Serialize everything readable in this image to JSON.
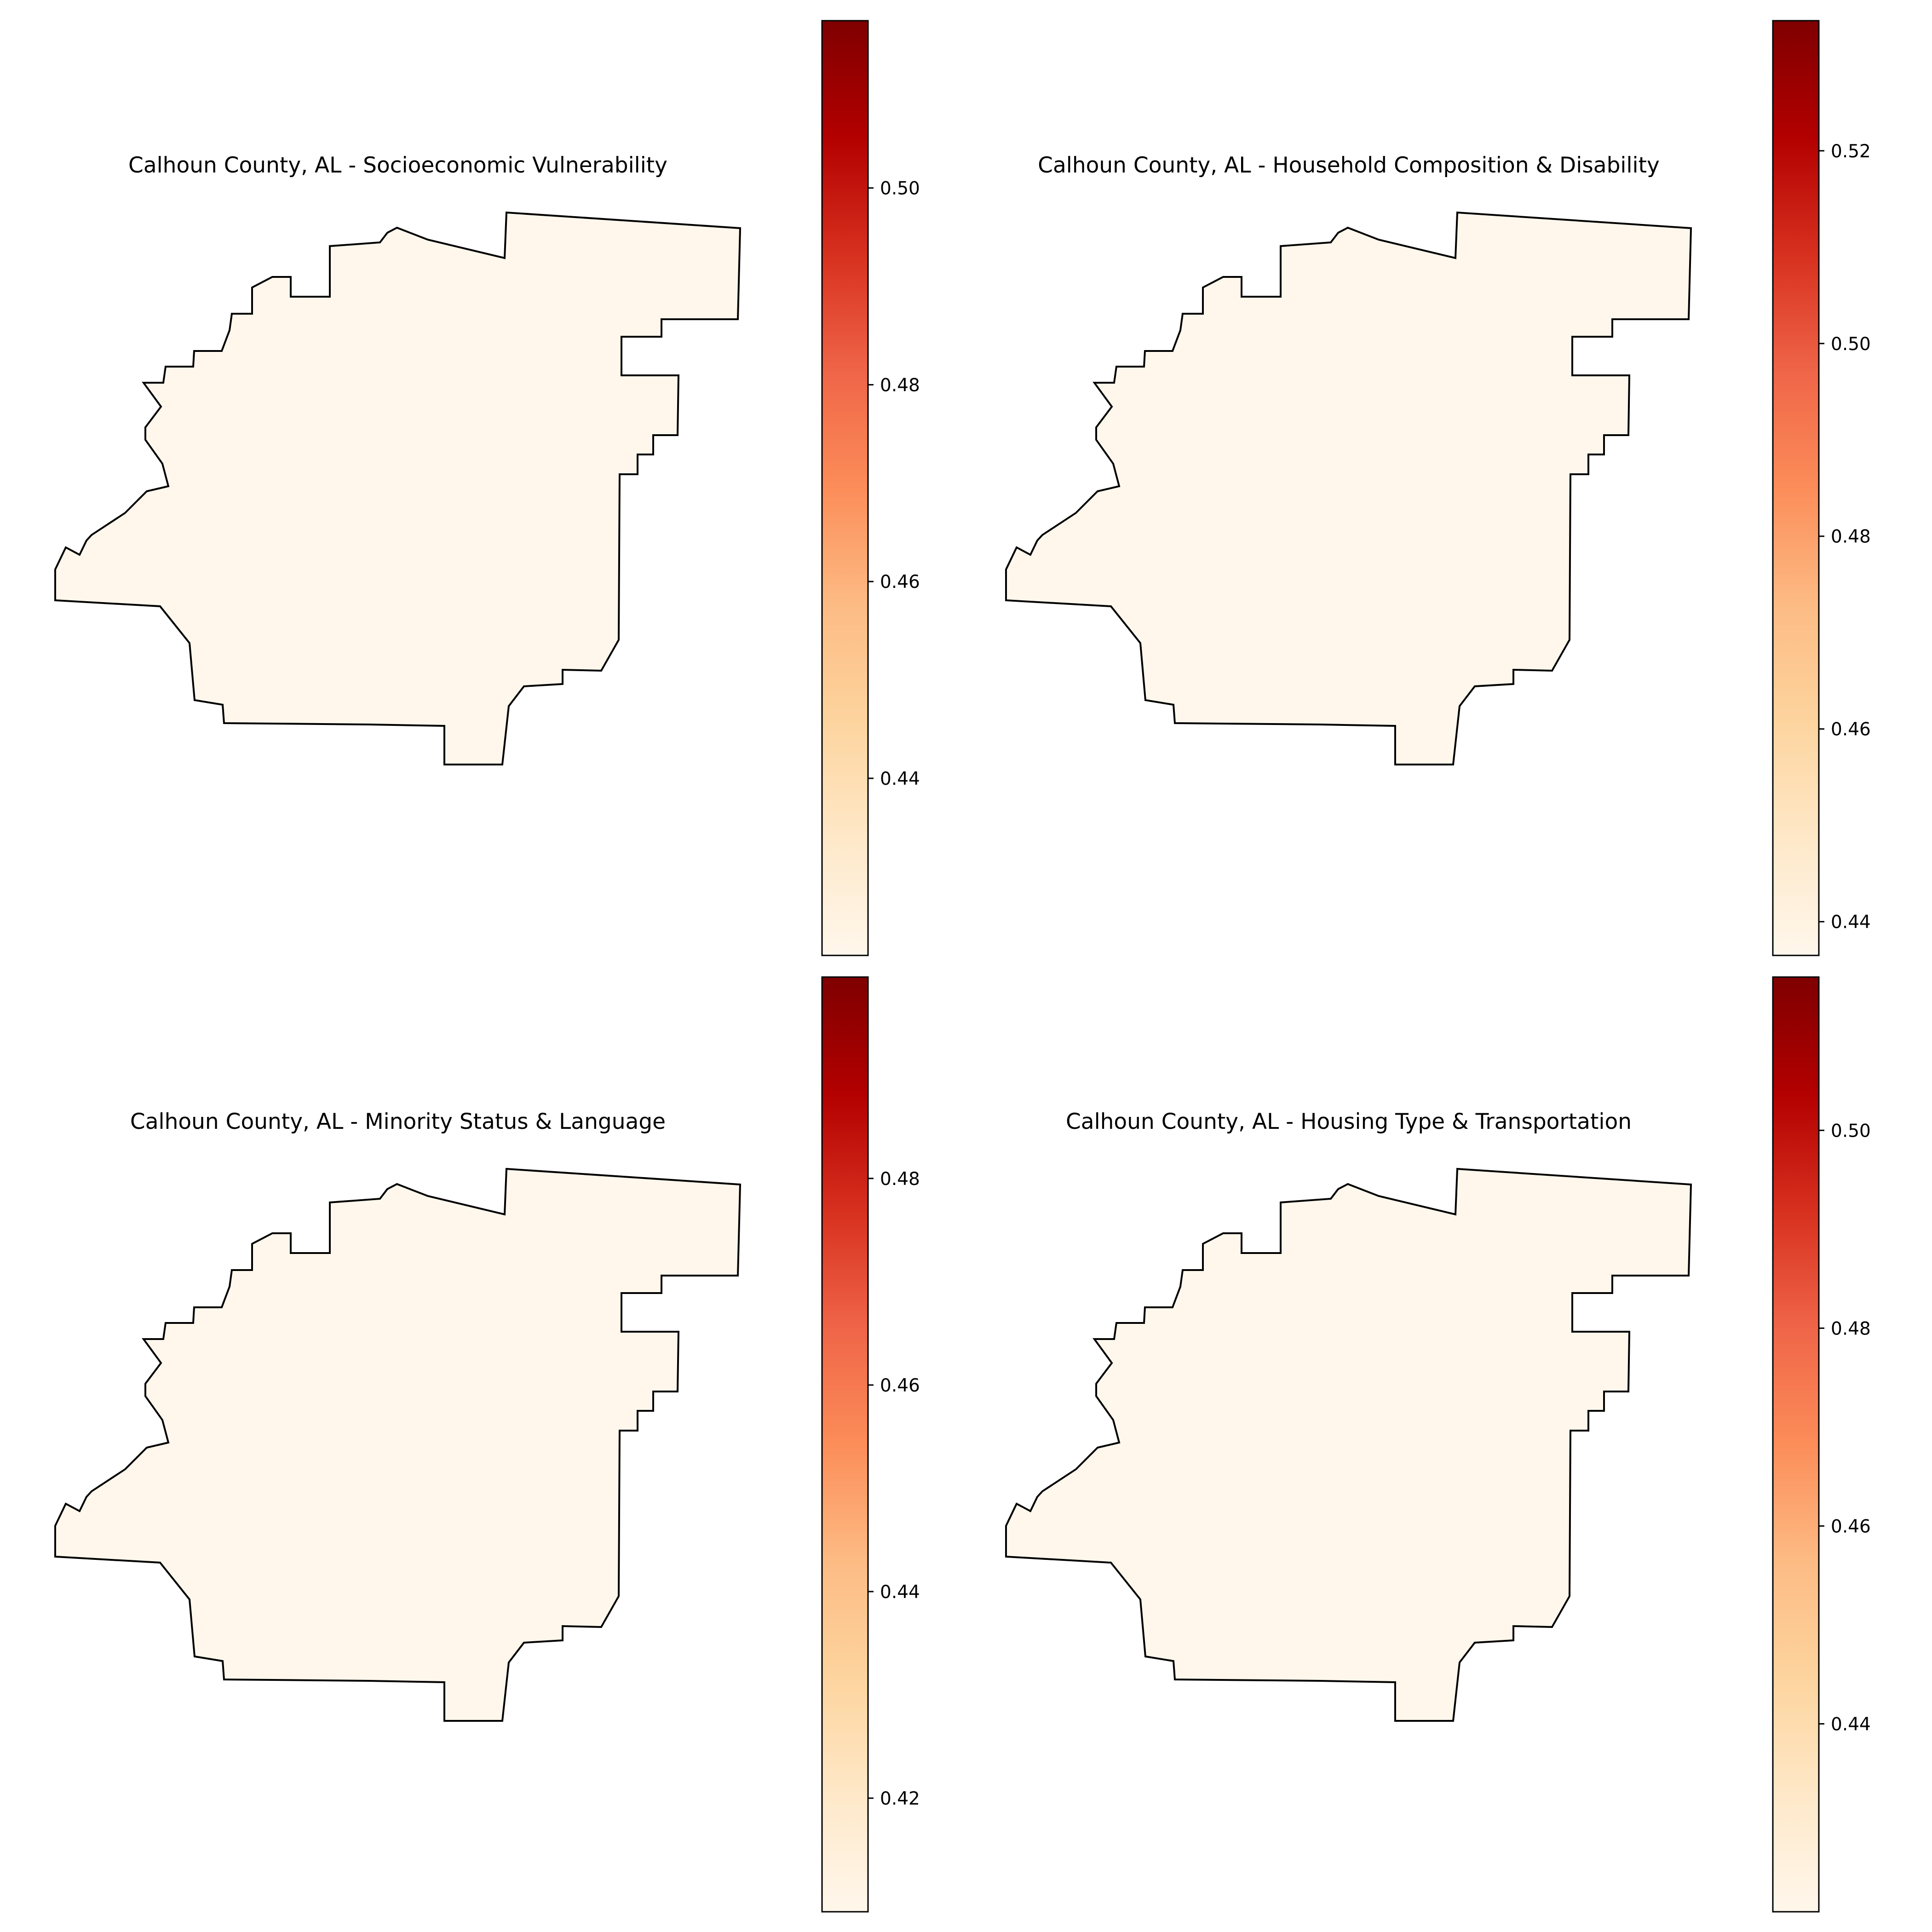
{
  "chart_data": [
    {
      "type": "choropleth",
      "title": "Calhoun County, AL - Socioeconomic Vulnerability",
      "region": "Calhoun County, AL",
      "colormap": "OrRd",
      "region_fill": "#fff7ec",
      "colorbar": {
        "range": [
          0.422,
          0.517
        ],
        "ticks": [
          "0.44",
          "0.46",
          "0.48",
          "0.50"
        ]
      }
    },
    {
      "type": "choropleth",
      "title": "Calhoun County, AL - Household Composition & Disability",
      "region": "Calhoun County, AL",
      "colormap": "OrRd",
      "region_fill": "#fff7ec",
      "colorbar": {
        "range": [
          0.4365,
          0.5335
        ],
        "ticks": [
          "0.44",
          "0.46",
          "0.48",
          "0.50",
          "0.52"
        ]
      }
    },
    {
      "type": "choropleth",
      "title": "Calhoun County, AL - Minority Status & Language",
      "region": "Calhoun County, AL",
      "colormap": "OrRd",
      "region_fill": "#fff7ec",
      "colorbar": {
        "range": [
          0.409,
          0.4995
        ],
        "ticks": [
          "0.42",
          "0.44",
          "0.46",
          "0.48"
        ]
      }
    },
    {
      "type": "choropleth",
      "title": "Calhoun County, AL - Housing Type & Transportation",
      "region": "Calhoun County, AL",
      "colormap": "OrRd",
      "region_fill": "#fff7ec",
      "colorbar": {
        "range": [
          0.421,
          0.5155
        ],
        "ticks": [
          "0.44",
          "0.46",
          "0.48",
          "0.50"
        ]
      }
    }
  ],
  "colormap_stops": [
    "#fff7ec",
    "#fee8c8",
    "#fdd49e",
    "#fdbb84",
    "#fc8d59",
    "#ef6548",
    "#d7301f",
    "#b30000",
    "#7f0000"
  ]
}
